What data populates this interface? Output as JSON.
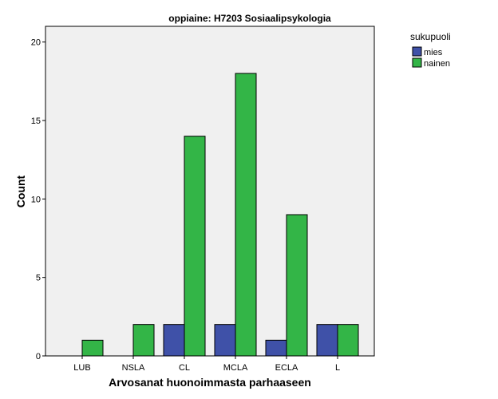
{
  "chart_data": {
    "type": "bar",
    "title": "oppiaine: H7203 Sosiaalipsykologia",
    "xlabel": "Arvosanat huonoimmasta parhaaseen",
    "ylabel": "Count",
    "categories": [
      "LUB",
      "NSLA",
      "CL",
      "MCLA",
      "ECLA",
      "L"
    ],
    "ylim": [
      0,
      21
    ],
    "yticks": [
      0,
      5,
      10,
      15,
      20
    ],
    "grid": false,
    "legend": {
      "title": "sukupuoli",
      "position": "right"
    },
    "series": [
      {
        "name": "mies",
        "color": "#3f51a8",
        "values": [
          0,
          0,
          2,
          2,
          1,
          2
        ]
      },
      {
        "name": "nainen",
        "color": "#33b547",
        "values": [
          1,
          2,
          14,
          18,
          9,
          2
        ]
      }
    ]
  }
}
